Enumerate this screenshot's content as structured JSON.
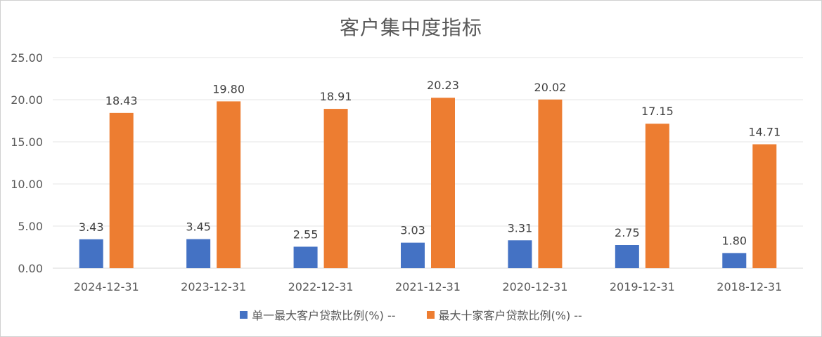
{
  "chart_data": {
    "type": "bar",
    "title": "客户集中度指标",
    "categories": [
      "2024-12-31",
      "2023-12-31",
      "2022-12-31",
      "2021-12-31",
      "2020-12-31",
      "2019-12-31",
      "2018-12-31"
    ],
    "series": [
      {
        "name": "单一最大客户贷款比例(%) --",
        "color": "#4472C4",
        "values": [
          3.43,
          3.45,
          2.55,
          3.03,
          3.31,
          2.75,
          1.8
        ],
        "labels": [
          "3.43",
          "3.45",
          "2.55",
          "3.03",
          "3.31",
          "2.75",
          "1.80"
        ]
      },
      {
        "name": "最大十家客户贷款比例(%) --",
        "color": "#ED7D31",
        "values": [
          18.43,
          19.8,
          18.91,
          20.23,
          20.02,
          17.15,
          14.71
        ],
        "labels": [
          "18.43",
          "19.80",
          "18.91",
          "20.23",
          "20.02",
          "17.15",
          "14.71"
        ]
      }
    ],
    "yticks": [
      "0.00",
      "5.00",
      "10.00",
      "15.00",
      "20.00",
      "25.00"
    ],
    "ylim": [
      0,
      25
    ],
    "grid": true,
    "legend_position": "bottom"
  }
}
